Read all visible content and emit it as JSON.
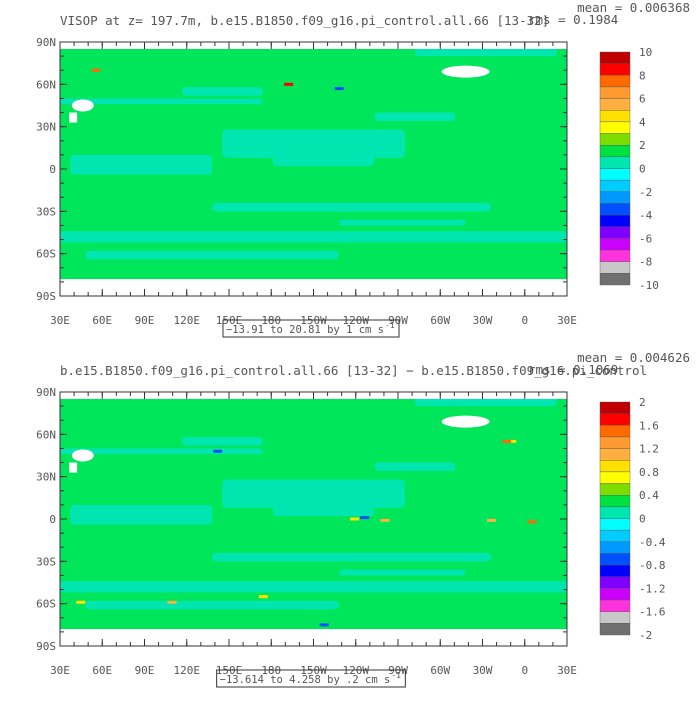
{
  "panels": [
    {
      "title": "VISOP at z= 197.7m, b.e15.B1850.f09_g16.pi_control.all.66 [13-32]",
      "mean": "mean = 0.006368",
      "rms": "rms = 0.1984",
      "range_label": "−13.91 to 20.81 by 1 cm s",
      "range_sup": "-1",
      "colorbar_labels": [
        "10",
        "8",
        "6",
        "4",
        "2",
        "0",
        "-2",
        "-4",
        "-6",
        "-8",
        "-10"
      ]
    },
    {
      "title": "b.e15.B1850.f09_g16.pi_control.all.66 [13-32] − b.e15.B1850.f09_g16.pi_control",
      "mean": "mean = 0.004626",
      "rms": "rms = 0.1069",
      "range_label": "−13.614 to 4.258 by .2 cm s",
      "range_sup": "-1",
      "colorbar_labels": [
        "2",
        "1.6",
        "1.2",
        "0.8",
        "0.4",
        "0",
        "-0.4",
        "-0.8",
        "-1.2",
        "-1.6",
        "-2"
      ]
    }
  ],
  "chart_data": [
    {
      "type": "heatmap",
      "title": "VISOP at z= 197.7m, b.e15.B1850.f09_g16.pi_control.all.66 [13-32]",
      "x_ticks": [
        "30E",
        "60E",
        "90E",
        "120E",
        "150E",
        "180",
        "150W",
        "120W",
        "90W",
        "60W",
        "30W",
        "0",
        "30E"
      ],
      "y_ticks": [
        "90N",
        "60N",
        "30N",
        "0",
        "30S",
        "60S",
        "90S"
      ],
      "colorbar_levels": [
        10,
        8,
        6,
        4,
        2,
        0,
        -2,
        -4,
        -6,
        -8,
        -10
      ],
      "colors": [
        "#c00000",
        "#ff0000",
        "#ff6a00",
        "#ff9a30",
        "#ffb040",
        "#ffe000",
        "#ffff00",
        "#7ddd00",
        "#00e040",
        "#00e6b0",
        "#00ffff",
        "#00ccff",
        "#0099ff",
        "#0050ff",
        "#0000ff",
        "#8000ff",
        "#cc00ff",
        "#ff33dd",
        "#c8c8c8",
        "#707070"
      ],
      "mean": 0.006368,
      "rms": 0.1984,
      "data_min": -13.91,
      "data_max": 20.81,
      "interval": 1,
      "units": "cm s-1"
    },
    {
      "type": "heatmap",
      "title": "b.e15.B1850.f09_g16.pi_control.all.66 [13-32] − b.e15.B1850.f09_g16.pi_control",
      "x_ticks": [
        "30E",
        "60E",
        "90E",
        "120E",
        "150E",
        "180",
        "150W",
        "120W",
        "90W",
        "60W",
        "30W",
        "0",
        "30E"
      ],
      "y_ticks": [
        "90N",
        "60N",
        "30N",
        "0",
        "30S",
        "60S",
        "90S"
      ],
      "colorbar_levels": [
        2,
        1.6,
        1.2,
        0.8,
        0.4,
        0,
        -0.4,
        -0.8,
        -1.2,
        -1.6,
        -2
      ],
      "colors": [
        "#c00000",
        "#ff0000",
        "#ff6a00",
        "#ff9a30",
        "#ffb040",
        "#ffe000",
        "#ffff00",
        "#7ddd00",
        "#00e040",
        "#00e6b0",
        "#00ffff",
        "#00ccff",
        "#0099ff",
        "#0050ff",
        "#0000ff",
        "#8000ff",
        "#cc00ff",
        "#ff33dd",
        "#c8c8c8",
        "#707070"
      ],
      "mean": 0.004626,
      "rms": 0.1069,
      "data_min": -13.614,
      "data_max": 4.258,
      "interval": 0.2,
      "units": "cm s-1"
    }
  ]
}
